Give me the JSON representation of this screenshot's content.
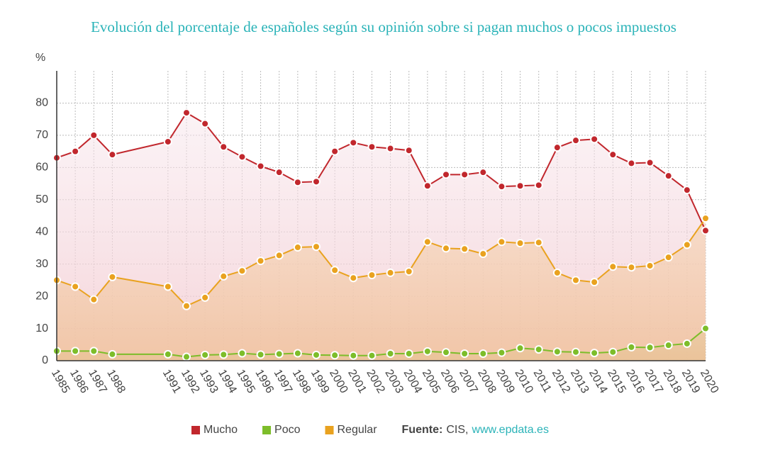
{
  "chart_data": {
    "type": "line",
    "title": "Evolución del porcentaje de españoles según su opinión sobre si pagan muchos o pocos impuestos",
    "y_label": "%",
    "x": [
      1985,
      1986,
      1987,
      1988,
      1991,
      1992,
      1993,
      1994,
      1995,
      1996,
      1997,
      1998,
      1999,
      2000,
      2001,
      2002,
      2003,
      2004,
      2005,
      2006,
      2007,
      2008,
      2009,
      2010,
      2011,
      2012,
      2013,
      2014,
      2015,
      2016,
      2017,
      2018,
      2019,
      2020
    ],
    "xlim": [
      1985,
      2020
    ],
    "ylim": [
      0,
      90
    ],
    "yticks": [
      0,
      10,
      20,
      30,
      40,
      50,
      60,
      70,
      80
    ],
    "grid": true,
    "series": [
      {
        "name": "Mucho",
        "color": "#c1272d",
        "values": [
          63,
          65,
          70,
          64,
          68,
          77,
          73.6,
          66.4,
          63.3,
          60.4,
          58.5,
          55.4,
          55.6,
          65,
          67.7,
          66.4,
          65.9,
          65.3,
          54.3,
          57.8,
          57.8,
          58.5,
          54.1,
          54.3,
          54.5,
          66.2,
          68.4,
          68.8,
          64,
          61.3,
          61.5,
          57.4,
          53,
          40.4
        ]
      },
      {
        "name": "Poco",
        "color": "#7dbd2a",
        "values": [
          3,
          3,
          3,
          2,
          2,
          1.2,
          1.8,
          1.9,
          2.3,
          1.9,
          2.1,
          2.3,
          1.8,
          1.7,
          1.6,
          1.6,
          2.2,
          2.2,
          2.9,
          2.6,
          2.2,
          2.2,
          2.5,
          3.9,
          3.5,
          2.8,
          2.7,
          2.4,
          2.7,
          4.2,
          4.1,
          4.8,
          5.3,
          10
        ]
      },
      {
        "name": "Regular",
        "color": "#e9a21f",
        "values": [
          25,
          23,
          19,
          26,
          23,
          17,
          19.6,
          26.2,
          27.9,
          31,
          32.7,
          35.2,
          35.4,
          28.1,
          25.7,
          26.6,
          27.3,
          27.7,
          36.9,
          34.9,
          34.7,
          33.2,
          36.9,
          36.5,
          36.7,
          27.3,
          25,
          24.4,
          29.2,
          29,
          29.5,
          32.1,
          36,
          44.2
        ]
      }
    ],
    "source": {
      "label": "Fuente:",
      "text": "CIS,",
      "link": "www.epdata.es"
    }
  }
}
